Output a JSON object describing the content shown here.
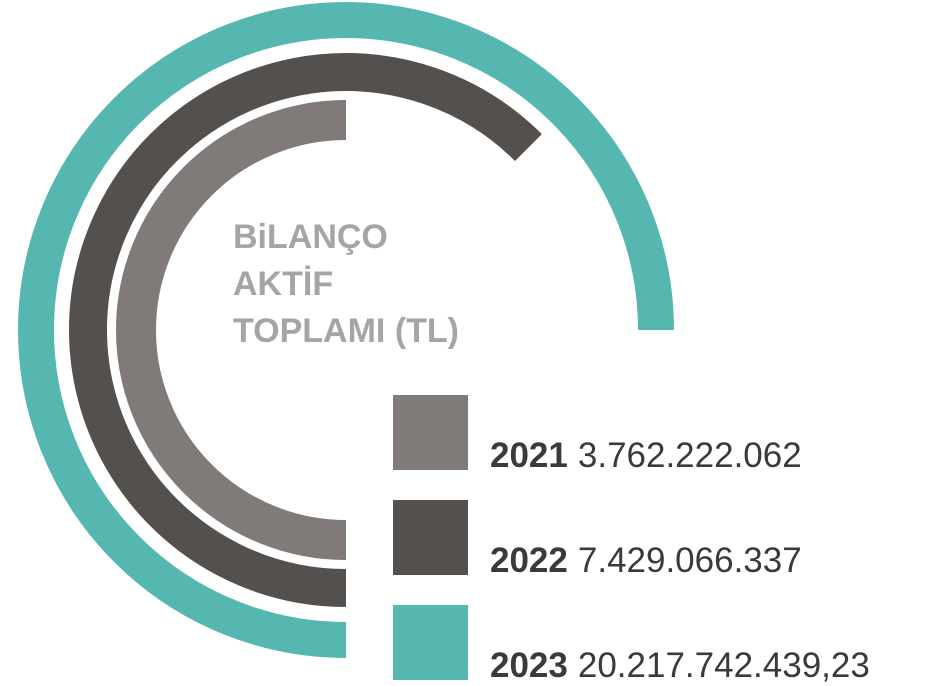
{
  "chart_data": {
    "type": "radial-bar",
    "title": [
      "BiLANÇO",
      "AKTİF",
      "TOPLAMI (TL)"
    ],
    "categories": [
      "2021",
      "2022",
      "2023"
    ],
    "values": [
      3762222062,
      7429066337,
      20217742439.23
    ],
    "value_labels": [
      "3.762.222.062",
      "7.429.066.337",
      "20.217.742.439,23"
    ],
    "colors": [
      "#807a78",
      "#54504d",
      "#56b7b1"
    ]
  }
}
